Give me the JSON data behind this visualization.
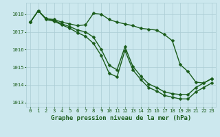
{
  "line1_x": [
    0,
    1,
    2,
    3,
    4,
    5,
    6,
    7,
    8,
    9,
    10,
    11,
    12,
    13,
    14,
    15,
    16,
    17,
    18,
    19,
    20,
    21,
    22,
    23
  ],
  "line1_y": [
    1017.55,
    1018.2,
    1017.75,
    1017.7,
    1017.55,
    1017.45,
    1017.35,
    1017.4,
    1018.05,
    1018.0,
    1017.7,
    1017.55,
    1017.45,
    1017.35,
    1017.2,
    1017.15,
    1017.1,
    1016.85,
    1016.5,
    1015.15,
    1014.75,
    1014.15,
    1014.1,
    1014.35
  ],
  "line2_x": [
    0,
    1,
    2,
    3,
    4,
    5,
    6,
    7,
    8,
    9,
    10,
    11,
    12,
    13,
    14,
    15,
    16,
    17,
    18,
    19,
    20,
    21,
    22,
    23
  ],
  "line2_y": [
    1017.55,
    1018.2,
    1017.75,
    1017.65,
    1017.45,
    1017.3,
    1017.1,
    1017.0,
    1016.7,
    1016.0,
    1015.1,
    1014.85,
    1016.15,
    1015.05,
    1014.5,
    1014.05,
    1013.85,
    1013.6,
    1013.5,
    1013.45,
    1013.45,
    1013.85,
    1014.1,
    1014.35
  ],
  "line3_x": [
    0,
    1,
    2,
    3,
    4,
    5,
    6,
    7,
    8,
    9,
    10,
    11,
    12,
    13,
    14,
    15,
    16,
    17,
    18,
    19,
    20,
    21,
    22,
    23
  ],
  "line3_y": [
    1017.55,
    1018.2,
    1017.7,
    1017.6,
    1017.4,
    1017.2,
    1016.95,
    1016.75,
    1016.35,
    1015.65,
    1014.65,
    1014.45,
    1015.95,
    1014.85,
    1014.3,
    1013.85,
    1013.65,
    1013.4,
    1013.3,
    1013.2,
    1013.2,
    1013.6,
    1013.85,
    1014.1
  ],
  "xlim": [
    -0.5,
    23.5
  ],
  "ylim": [
    1012.75,
    1018.65
  ],
  "yticks": [
    1013,
    1014,
    1015,
    1016,
    1017,
    1018
  ],
  "xticks": [
    0,
    1,
    2,
    3,
    4,
    5,
    6,
    7,
    8,
    9,
    10,
    11,
    12,
    13,
    14,
    15,
    16,
    17,
    18,
    19,
    20,
    21,
    22,
    23
  ],
  "xlabel": "Graphe pression niveau de la mer (hPa)",
  "bg_color": "#cce8ee",
  "grid_color": "#aaccd4",
  "line_color": "#1a5c1a",
  "text_color": "#1a5c1a",
  "tick_fontsize": 5.2,
  "xlabel_fontsize": 6.5,
  "linewidth": 1.0,
  "markersize": 2.5
}
